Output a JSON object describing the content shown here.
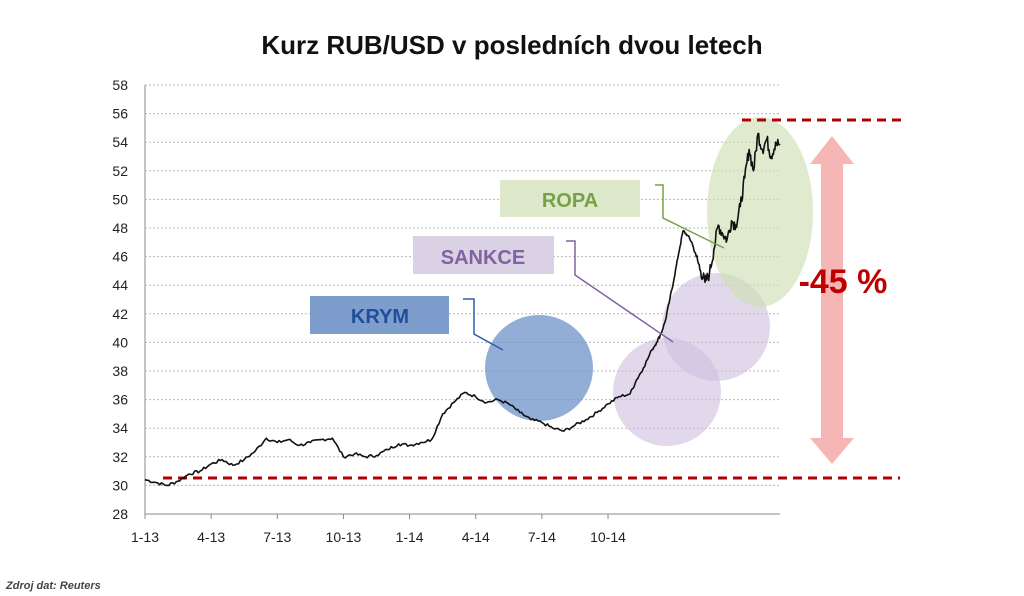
{
  "chart_data": {
    "type": "line",
    "title": "Kurz RUB/USD v posledních dvou letech",
    "xlabel": "",
    "ylabel": "",
    "ylim": [
      28,
      58
    ],
    "yticks": [
      28,
      30,
      32,
      34,
      36,
      38,
      40,
      42,
      44,
      46,
      48,
      50,
      52,
      54,
      56,
      58
    ],
    "xticks": [
      "1-13",
      "4-13",
      "7-13",
      "10-13",
      "1-14",
      "4-14",
      "7-14",
      "10-14"
    ],
    "grid": "horizontal-dashed",
    "series": [
      {
        "color": "#111111",
        "x": [
          0,
          0.5,
          1,
          1.5,
          2,
          2.5,
          3,
          3.5,
          4,
          4.5,
          5,
          5.5,
          6,
          6.5,
          7,
          7.5,
          8,
          8.5,
          9,
          9.5,
          10,
          10.5,
          11,
          11.5,
          12,
          12.5,
          13,
          13.5,
          14,
          14.5,
          15,
          15.5,
          16,
          16.5,
          17,
          17.5,
          18,
          18.5,
          19,
          19.5,
          20,
          20.5,
          21,
          21.5,
          22,
          22.3,
          22.6,
          23,
          23.2,
          23.4,
          23.6,
          23.8,
          24,
          24.2,
          24.4,
          24.6,
          24.8,
          25,
          25.2,
          25.4,
          25.6,
          25.8,
          26,
          26.2,
          26.4,
          26.6,
          26.8,
          27,
          27.2,
          27.4,
          27.6,
          27.8,
          28,
          28.2,
          28.4,
          28.6,
          28.8
        ],
        "y": [
          30.4,
          30.2,
          30.0,
          30.3,
          30.8,
          31.0,
          31.5,
          31.8,
          31.4,
          31.8,
          32.4,
          33.3,
          33.0,
          33.2,
          32.8,
          33.0,
          33.2,
          33.3,
          32.0,
          32.2,
          32.0,
          32.1,
          32.5,
          32.9,
          32.8,
          33.0,
          33.2,
          35.0,
          35.8,
          36.5,
          36.2,
          35.8,
          36.0,
          35.7,
          35.1,
          34.6,
          34.4,
          34.0,
          33.8,
          34.2,
          34.6,
          35.1,
          35.7,
          36.2,
          36.4,
          37.4,
          38.2,
          39.5,
          40.0,
          40.6,
          41.5,
          43.0,
          44.5,
          46.2,
          47.8,
          47.5,
          47.0,
          46.0,
          45.0,
          44.2,
          44.8,
          46.5,
          48.2,
          47.6,
          47.2,
          48.5,
          48.2,
          49.5,
          51.5,
          53.5,
          52.0,
          54.6,
          53.5,
          54.2,
          53.0,
          54.0,
          53.8
        ]
      }
    ],
    "annotations": [
      {
        "label": "KRYM",
        "color": "#2e5da8",
        "box_color": "#6f93c8"
      },
      {
        "label": "SANKCE",
        "color": "#8064a2",
        "box_color": "#d9cfe4"
      },
      {
        "label": "ROPA",
        "color": "#77a146",
        "box_color": "#dce8c8"
      },
      {
        "label": "-45 %",
        "color": "#c00000"
      }
    ],
    "reference_levels": [
      30.5,
      55.5
    ]
  },
  "footer": {
    "source": "Zdroj dat: Reuters"
  }
}
